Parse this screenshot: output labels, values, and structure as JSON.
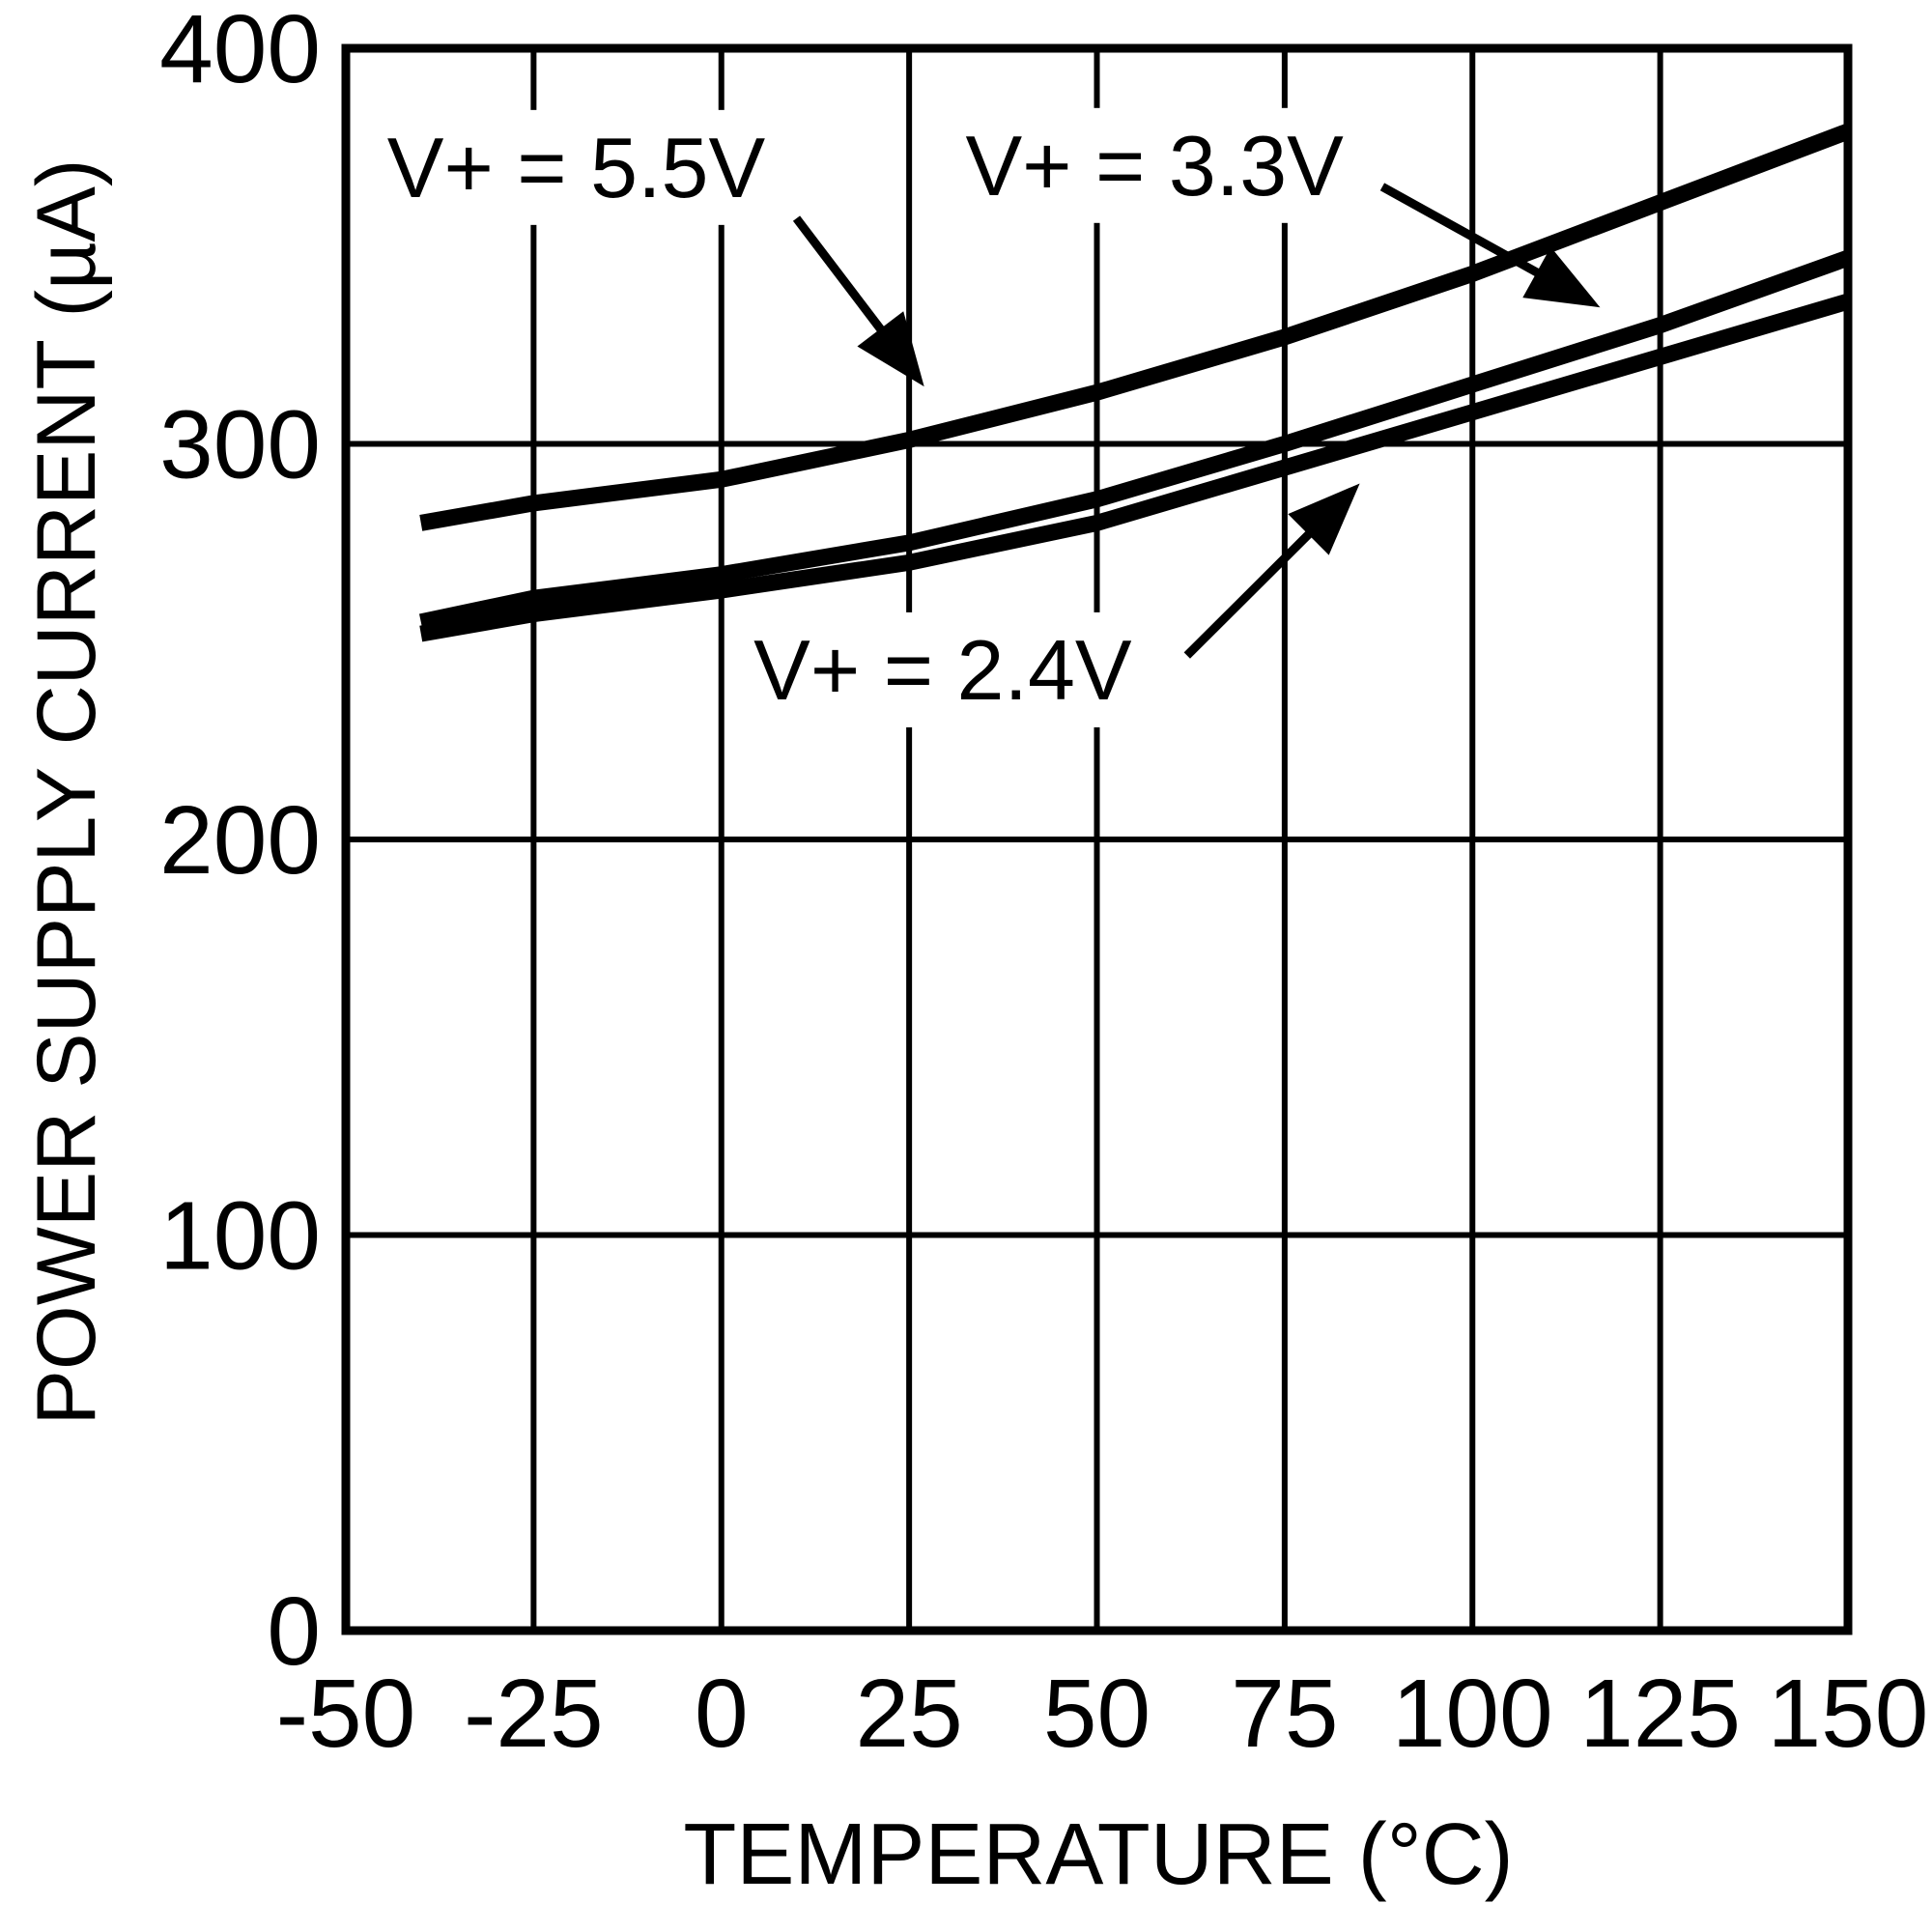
{
  "figure": {
    "background": "#ffffff",
    "ink": "#000000"
  },
  "chart_data": {
    "type": "line",
    "title": "",
    "xlabel": "TEMPERATURE (°C)",
    "ylabel": "POWER SUPPLY CURRENT (µA)",
    "xlim": [
      -50,
      150
    ],
    "ylim": [
      0,
      400
    ],
    "xticks": [
      -50,
      -25,
      0,
      25,
      50,
      75,
      100,
      125,
      150
    ],
    "yticks": [
      0,
      100,
      200,
      300,
      400
    ],
    "grid": true,
    "legend_position": "inline-annotations",
    "x": [
      -40,
      -25,
      0,
      25,
      50,
      75,
      100,
      125,
      150
    ],
    "series": [
      {
        "name": "V+ = 5.5V",
        "values": [
          280,
          285,
          291,
          301,
          313,
          327,
          343,
          361,
          379
        ]
      },
      {
        "name": "V+ = 3.3V",
        "values": [
          255,
          261,
          267,
          275,
          286,
          300,
          315,
          330,
          347
        ]
      },
      {
        "name": "V+ = 2.4V",
        "values": [
          252,
          257,
          263,
          270,
          280,
          294,
          308,
          322,
          336
        ]
      }
    ],
    "annotations": [
      {
        "text": "V+ = 5.5V",
        "text_pos": {
          "t": -44.5,
          "v": 370
        },
        "arrow": {
          "from": {
            "t": 10,
            "v": 357
          },
          "to": {
            "t": 27,
            "v": 314.5
          }
        }
      },
      {
        "text": "V+ = 3.3V",
        "text_pos": {
          "t": 32.5,
          "v": 370.5
        },
        "arrow": {
          "from": {
            "t": 88,
            "v": 365
          },
          "to": {
            "t": 117,
            "v": 334.5
          }
        }
      },
      {
        "text": "V+ = 2.4V",
        "text_pos": {
          "t": 4.3,
          "v": 243
        },
        "arrow": {
          "from": {
            "t": 62,
            "v": 246.5
          },
          "to": {
            "t": 85,
            "v": 290
          }
        }
      }
    ]
  }
}
